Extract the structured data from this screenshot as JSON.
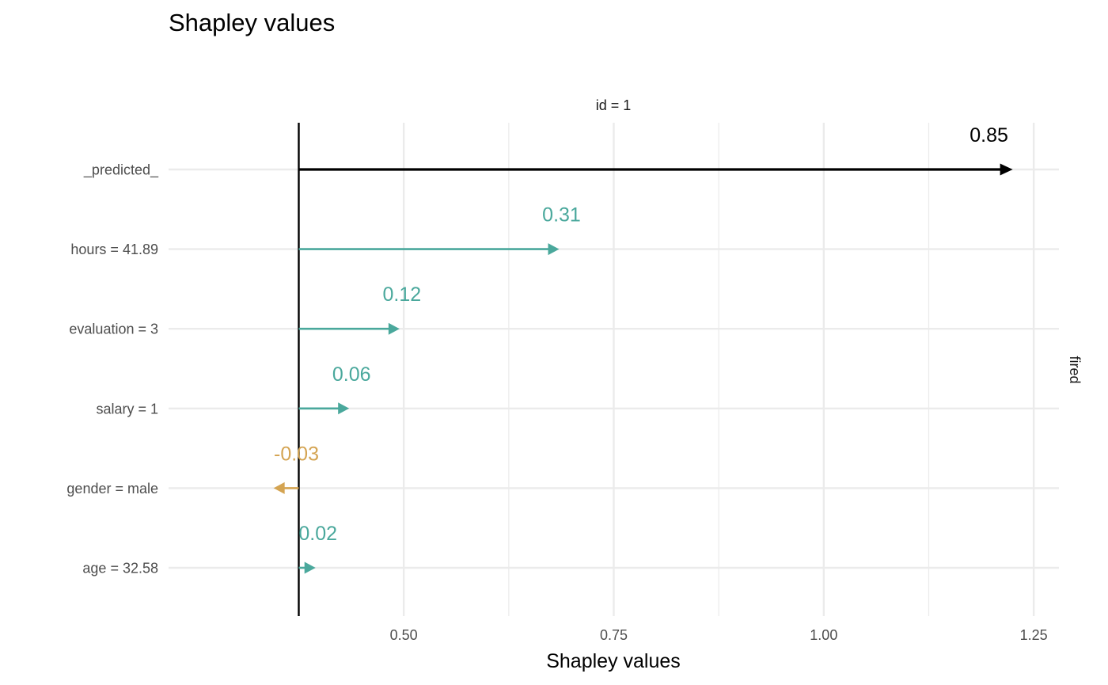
{
  "colors": {
    "positive": "#4aa89c",
    "negative": "#d4a452",
    "predicted": "#000000",
    "grid": "#ebebeb",
    "baseline": "#000000"
  },
  "chart_data": {
    "type": "bar",
    "subtype": "shapley-break-down",
    "title": "Shapley values",
    "facet_label": "id = 1",
    "side_label": "fired",
    "xlabel": "Shapley values",
    "ylabel": "",
    "baseline": 0.375,
    "xlim": [
      0.22,
      1.28
    ],
    "xticks": [
      {
        "value": 0.5,
        "label": "0.50"
      },
      {
        "value": 0.75,
        "label": "0.75"
      },
      {
        "value": 1.0,
        "label": "1.00"
      },
      {
        "value": 1.25,
        "label": "1.25"
      }
    ],
    "grid": true,
    "bars": [
      {
        "variable": "_predicted_",
        "contribution": 0.85,
        "label": "0.85",
        "kind": "predicted"
      },
      {
        "variable": "hours = 41.89",
        "contribution": 0.31,
        "label": "0.31",
        "kind": "positive"
      },
      {
        "variable": "evaluation = 3",
        "contribution": 0.12,
        "label": "0.12",
        "kind": "positive"
      },
      {
        "variable": "salary = 1",
        "contribution": 0.06,
        "label": "0.06",
        "kind": "positive"
      },
      {
        "variable": "gender = male",
        "contribution": -0.03,
        "label": "-0.03",
        "kind": "negative"
      },
      {
        "variable": "age = 32.58",
        "contribution": 0.02,
        "label": "0.02",
        "kind": "positive"
      }
    ]
  }
}
